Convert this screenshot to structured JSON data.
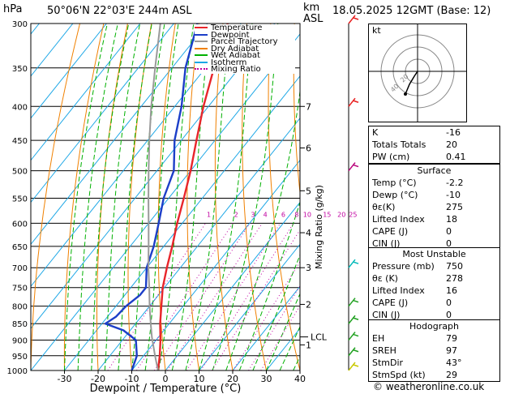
{
  "header": {
    "location": "50°06'N  22°03'E  244m  ASL",
    "datetime": "18.05.2025  12GMT  (Base: 12)",
    "hpa_label": "hPa",
    "km_label": "km",
    "asl_label": "ASL"
  },
  "legend": {
    "items": [
      {
        "label": "Temperature",
        "color": "#e8252b"
      },
      {
        "label": "Dewpoint",
        "color": "#1c3ec8"
      },
      {
        "label": "Parcel Trajectory",
        "color": "#9a9a9a"
      },
      {
        "label": "Dry Adiabat",
        "color": "#f08000"
      },
      {
        "label": "Wet Adiabat",
        "color": "#00b000"
      },
      {
        "label": "Isotherm",
        "color": "#1aa6e6"
      },
      {
        "label": "Mixing Ratio",
        "color": "#c000a0"
      }
    ]
  },
  "chart_data": {
    "type": "line",
    "xlabel": "Dewpoint / Temperature (°C)",
    "ylabel_right": "Mixing Ratio (g/kg)",
    "x_ticks": [
      -30,
      -20,
      -10,
      0,
      10,
      20,
      30,
      40
    ],
    "pressure_levels": [
      300,
      350,
      400,
      450,
      500,
      550,
      600,
      650,
      700,
      750,
      800,
      850,
      900,
      950,
      1000
    ],
    "xlim": [
      -40,
      40
    ],
    "ylim": [
      1000,
      300
    ],
    "y_scale": "log-pressure",
    "height_ticks_km": [
      {
        "label": "7",
        "p": 400
      },
      {
        "label": "6",
        "p": 462
      },
      {
        "label": "5",
        "p": 536
      },
      {
        "label": "4",
        "p": 620
      },
      {
        "label": "3",
        "p": 700
      },
      {
        "label": "2",
        "p": 795
      },
      {
        "label": "1",
        "p": 915
      }
    ],
    "lcl": {
      "label": "LCL",
      "p": 890
    },
    "mixing_ratio_labels": [
      "1",
      "2",
      "3",
      "4",
      "6",
      "8",
      "10",
      "15",
      "20",
      "25"
    ],
    "mixing_ratio_label_p": 590,
    "mixing_ratio_values": [
      1,
      2,
      3,
      4,
      6,
      8,
      10,
      15,
      20,
      25
    ],
    "series": [
      {
        "name": "Temperature",
        "p": [
          1000,
          950,
          900,
          850,
          800,
          750,
          700,
          650,
          600,
          550,
          500,
          450,
          400,
          350,
          300
        ],
        "t": [
          -2.2,
          -5.2,
          -8.7,
          -12.7,
          -16.5,
          -20.5,
          -24,
          -27.5,
          -31.5,
          -35.5,
          -40,
          -45.5,
          -51.5,
          -57.5,
          -64
        ]
      },
      {
        "name": "Dewpoint",
        "p": [
          1000,
          950,
          900,
          870,
          850,
          830,
          800,
          770,
          750,
          700,
          650,
          600,
          550,
          500,
          450,
          400,
          350,
          300
        ],
        "t": [
          -10,
          -12,
          -16,
          -22,
          -29,
          -27.5,
          -27,
          -25.5,
          -25.5,
          -30,
          -33,
          -37,
          -41.5,
          -45,
          -52,
          -58,
          -66,
          -73
        ]
      },
      {
        "name": "Parcel Trajectory",
        "p": [
          1000,
          950,
          890,
          850,
          800,
          750,
          700,
          650,
          600,
          550,
          500,
          450,
          400,
          350,
          300
        ],
        "t": [
          -2.2,
          -6.6,
          -12,
          -15.5,
          -20,
          -24.5,
          -29.5,
          -34.5,
          -40,
          -46,
          -52.5,
          -59.5,
          -67,
          -75,
          -84
        ]
      }
    ],
    "wind_barbs": [
      {
        "p": 1000,
        "color": "#c8c800"
      },
      {
        "p": 950,
        "color": "#20a020"
      },
      {
        "p": 900,
        "color": "#20a020"
      },
      {
        "p": 850,
        "color": "#20a020"
      },
      {
        "p": 800,
        "color": "#20a020"
      },
      {
        "p": 700,
        "color": "#00b8b8"
      },
      {
        "p": 500,
        "color": "#b8007a"
      },
      {
        "p": 400,
        "color": "#e82020"
      },
      {
        "p": 300,
        "color": "#e82020"
      }
    ]
  },
  "hodograph": {
    "label": "kt",
    "ring_labels": [
      "20",
      "40"
    ],
    "path": [
      [
        0,
        0
      ],
      [
        -4,
        -6
      ],
      [
        -10,
        -16
      ],
      [
        -15,
        -28
      ]
    ]
  },
  "indices": {
    "rows": [
      {
        "label": "K",
        "value": "-16"
      },
      {
        "label": "Totals Totals",
        "value": "20"
      },
      {
        "label": "PW (cm)",
        "value": "0.41"
      }
    ]
  },
  "surface": {
    "title": "Surface",
    "rows": [
      {
        "label": "Temp (°C)",
        "value": "-2.2"
      },
      {
        "label": "Dewp (°C)",
        "value": "-10"
      },
      {
        "label": "θε(K)",
        "value": "275"
      },
      {
        "label": "Lifted Index",
        "value": "18"
      },
      {
        "label": "CAPE (J)",
        "value": "0"
      },
      {
        "label": "CIN (J)",
        "value": "0"
      }
    ]
  },
  "most_unstable": {
    "title": "Most Unstable",
    "rows": [
      {
        "label": "Pressure (mb)",
        "value": "750"
      },
      {
        "label": "θε (K)",
        "value": "278"
      },
      {
        "label": "Lifted Index",
        "value": "16"
      },
      {
        "label": "CAPE (J)",
        "value": "0"
      },
      {
        "label": "CIN (J)",
        "value": "0"
      }
    ]
  },
  "hodograph_table": {
    "title": "Hodograph",
    "rows": [
      {
        "label": "EH",
        "value": "79"
      },
      {
        "label": "SREH",
        "value": "97"
      },
      {
        "label": "StmDir",
        "value": "43°"
      },
      {
        "label": "StmSpd (kt)",
        "value": "29"
      }
    ]
  },
  "footer": {
    "copyright": "© weatheronline.co.uk"
  }
}
